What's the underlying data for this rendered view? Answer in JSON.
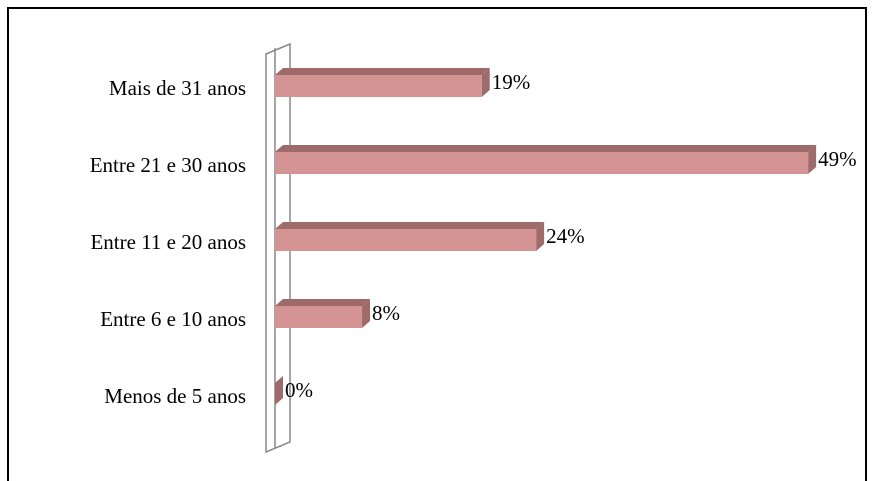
{
  "chart_data": {
    "type": "bar",
    "orientation": "horizontal",
    "categories": [
      "Mais de 31 anos",
      "Entre 21 e 30 anos",
      "Entre 11 e 20 anos",
      "Entre 6 e 10 anos",
      "Menos de 5 anos"
    ],
    "values": [
      19,
      49,
      24,
      8,
      0
    ],
    "value_labels": [
      "19%",
      "49%",
      "24%",
      "8%",
      "0%"
    ],
    "color": "#d49494"
  }
}
